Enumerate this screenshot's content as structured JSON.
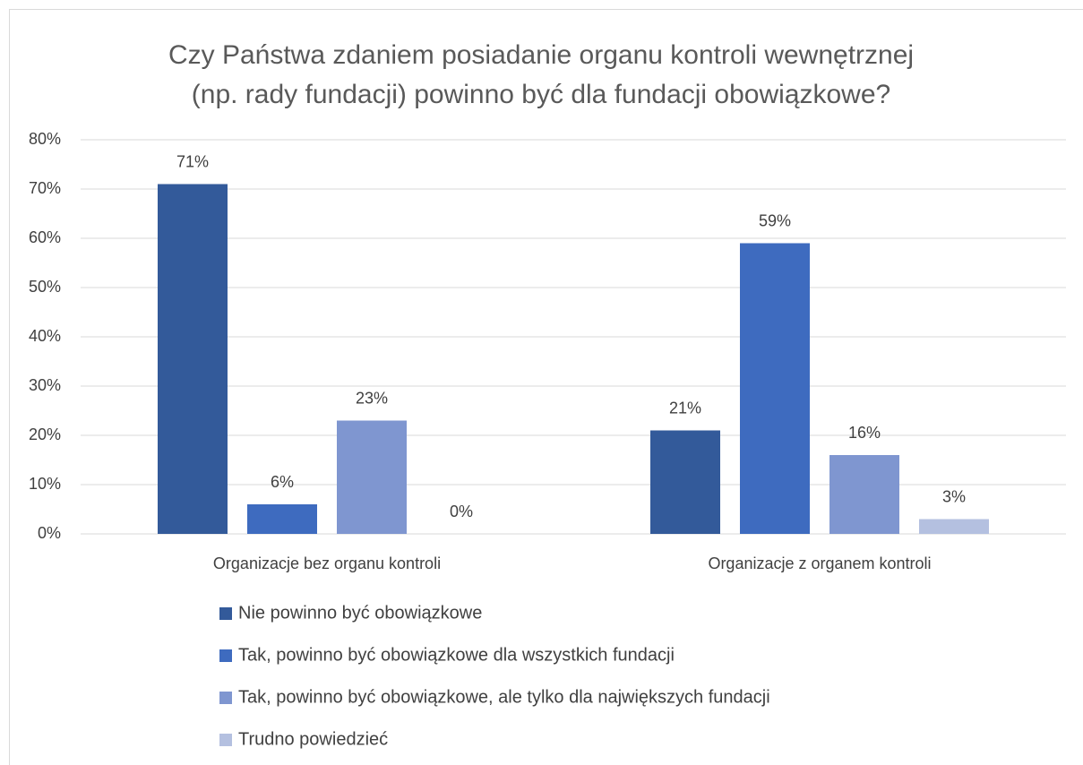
{
  "chart_data": {
    "type": "bar",
    "title": [
      "Czy Państwa zdaniem posiadanie organu kontroli wewnętrznej",
      "(np. rady fundacji) powinno być dla fundacji obowiązkowe?"
    ],
    "categories": [
      "Organizacje bez organu kontroli",
      "Organizacje z organem kontroli"
    ],
    "series": [
      {
        "name": "Nie powinno być obowiązkowe",
        "color": "#335a9a",
        "values": [
          71,
          21
        ],
        "value_labels": [
          "71%",
          "21%"
        ]
      },
      {
        "name": "Tak, powinno być obowiązkowe dla wszystkich fundacji",
        "color": "#3e6bbf",
        "values": [
          6,
          59
        ],
        "value_labels": [
          "6%",
          "59%"
        ]
      },
      {
        "name": "Tak, powinno być obowiązkowe, ale tylko dla największych fundacji",
        "color": "#7f96d0",
        "values": [
          23,
          16
        ],
        "value_labels": [
          "23%",
          "16%"
        ]
      },
      {
        "name": "Trudno powiedzieć",
        "color": "#b4c0e0",
        "values": [
          0,
          3
        ],
        "value_labels": [
          "0%",
          "3%"
        ]
      }
    ],
    "ylim": [
      0,
      80
    ],
    "yticks": [
      {
        "value": 0,
        "label": "0%"
      },
      {
        "value": 10,
        "label": "10%"
      },
      {
        "value": 20,
        "label": "20%"
      },
      {
        "value": 30,
        "label": "30%"
      },
      {
        "value": 40,
        "label": "40%"
      },
      {
        "value": 50,
        "label": "50%"
      },
      {
        "value": 60,
        "label": "60%"
      },
      {
        "value": 70,
        "label": "70%"
      },
      {
        "value": 80,
        "label": "80%"
      }
    ],
    "grid": true,
    "legend": "bottom"
  }
}
